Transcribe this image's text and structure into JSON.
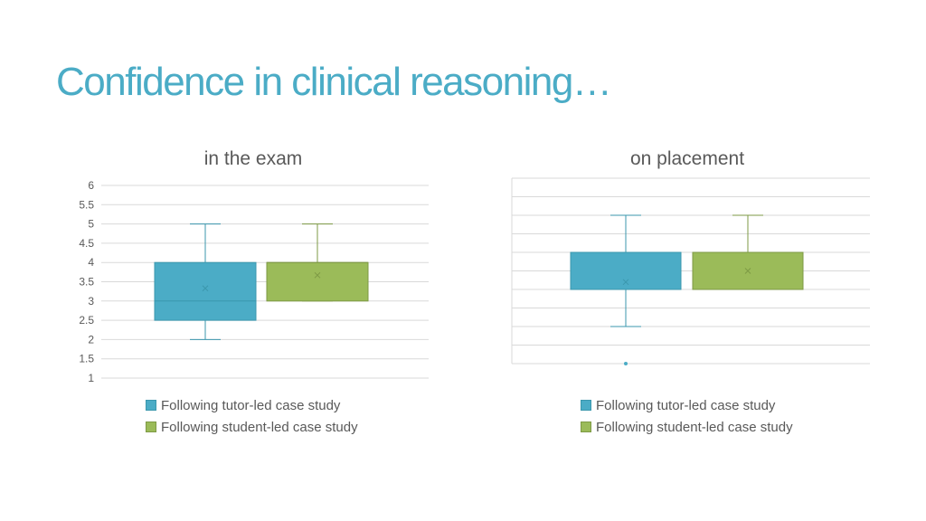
{
  "slide": {
    "title": "Confidence in clinical reasoning…"
  },
  "colors": {
    "tutor_fill": "#4bacc6",
    "tutor_line": "#3b97ad",
    "student_fill": "#9bbb59",
    "student_line": "#7e9a45",
    "grid": "#d9d9d9",
    "tick_text": "#595959"
  },
  "chart_data": [
    {
      "type": "box",
      "title": "in the exam",
      "yticks": [
        "6",
        "5.5",
        "5",
        "4.5",
        "4",
        "3.5",
        "3",
        "2.5",
        "2",
        "1.5",
        "1"
      ],
      "ylim": [
        1,
        6
      ],
      "grid": true,
      "legend_position": "bottom",
      "series": [
        {
          "name": "Following tutor-led case study",
          "min": 2,
          "q1": 2.5,
          "median": 3,
          "q3": 4,
          "max": 5,
          "mean": 3.33,
          "outliers": []
        },
        {
          "name": "Following student-led case study",
          "min": 3,
          "q1": 3,
          "median": 4,
          "q3": 4,
          "max": 5,
          "mean": 3.67,
          "outliers": []
        }
      ]
    },
    {
      "type": "box",
      "title": "on placement",
      "yticks": [],
      "ylim": [
        1,
        6
      ],
      "grid": true,
      "legend_position": "bottom",
      "series": [
        {
          "name": "Following tutor-led case study",
          "min": 2,
          "q1": 3,
          "median": 4,
          "q3": 4,
          "max": 5,
          "mean": 3.2,
          "outliers": [
            1
          ]
        },
        {
          "name": "Following student-led case study",
          "min": 3,
          "q1": 3,
          "median": 4,
          "q3": 4,
          "max": 5,
          "mean": 3.5,
          "outliers": []
        }
      ]
    }
  ]
}
